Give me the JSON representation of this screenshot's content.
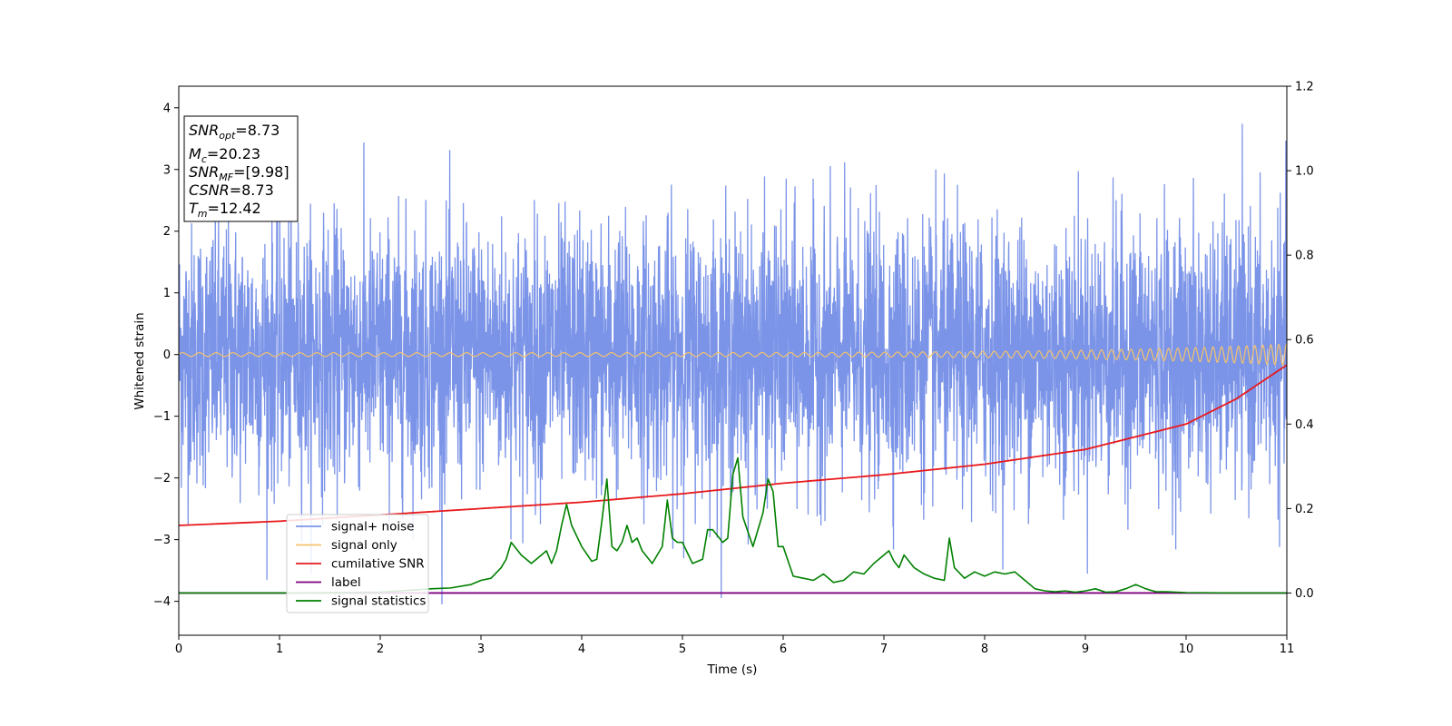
{
  "chart_data": {
    "type": "line",
    "xlabel": "Time (s)",
    "ylabel": "Whitened strain",
    "xlim": [
      0,
      11
    ],
    "ylim_left": [
      -4.55,
      4.35
    ],
    "ylim_right": [
      -0.1,
      1.2
    ],
    "x_ticks": [
      0,
      1,
      2,
      3,
      4,
      5,
      6,
      7,
      8,
      9,
      10,
      11
    ],
    "y_ticks_left": [
      -4,
      -3,
      -2,
      -1,
      0,
      1,
      2,
      3,
      4
    ],
    "y_ticks_right": [
      0.0,
      0.2,
      0.4,
      0.6,
      0.8,
      1.0,
      1.2
    ],
    "grid": false,
    "legend_position": "lower-left",
    "series": [
      {
        "name": "signal+ noise",
        "axis": "left",
        "color": "#7b94e8",
        "noise_std": 1.05,
        "note_values": "dense noise band spanning roughly -4 to 4"
      },
      {
        "name": "signal only",
        "axis": "left",
        "color": "#f5c36b",
        "amplitude_start": 0.03,
        "amplitude_end": 0.17,
        "freq_start_hz": 6,
        "freq_end_hz": 13
      },
      {
        "name": "cumilative SNR",
        "axis": "right",
        "color": "#e8191c",
        "x": [
          0,
          1,
          2,
          3,
          4,
          5,
          6,
          7,
          8,
          9,
          10,
          10.5,
          11
        ],
        "y": [
          0.16,
          0.17,
          0.185,
          0.2,
          0.215,
          0.235,
          0.26,
          0.28,
          0.305,
          0.34,
          0.4,
          0.46,
          0.54
        ]
      },
      {
        "name": "label",
        "axis": "right",
        "color": "#800080",
        "x": [
          0,
          11
        ],
        "y": [
          0.0,
          0.0
        ]
      },
      {
        "name": "signal statistics",
        "axis": "right",
        "color": "#008000",
        "x": [
          0,
          1,
          2,
          2.5,
          2.7,
          2.9,
          3.0,
          3.1,
          3.2,
          3.25,
          3.3,
          3.4,
          3.5,
          3.6,
          3.65,
          3.7,
          3.75,
          3.8,
          3.85,
          3.9,
          4.0,
          4.1,
          4.15,
          4.2,
          4.25,
          4.3,
          4.35,
          4.4,
          4.45,
          4.5,
          4.55,
          4.6,
          4.7,
          4.8,
          4.85,
          4.9,
          4.95,
          5.0,
          5.1,
          5.2,
          5.25,
          5.3,
          5.4,
          5.45,
          5.5,
          5.55,
          5.6,
          5.7,
          5.8,
          5.85,
          5.9,
          5.95,
          6.0,
          6.1,
          6.2,
          6.3,
          6.4,
          6.5,
          6.6,
          6.7,
          6.8,
          6.9,
          7.0,
          7.05,
          7.1,
          7.15,
          7.2,
          7.3,
          7.4,
          7.5,
          7.6,
          7.65,
          7.7,
          7.8,
          7.9,
          8.0,
          8.1,
          8.2,
          8.3,
          8.4,
          8.5,
          8.6,
          8.7,
          8.8,
          8.9,
          9.0,
          9.1,
          9.2,
          9.3,
          9.4,
          9.5,
          9.6,
          9.7,
          9.8,
          9.9,
          10.0,
          10.5,
          11.0
        ],
        "y": [
          0.0,
          0.0,
          0.002,
          0.01,
          0.012,
          0.02,
          0.03,
          0.035,
          0.06,
          0.08,
          0.12,
          0.09,
          0.07,
          0.09,
          0.1,
          0.07,
          0.1,
          0.16,
          0.21,
          0.16,
          0.11,
          0.075,
          0.08,
          0.17,
          0.27,
          0.11,
          0.1,
          0.12,
          0.16,
          0.12,
          0.13,
          0.1,
          0.07,
          0.11,
          0.22,
          0.13,
          0.12,
          0.12,
          0.07,
          0.08,
          0.15,
          0.15,
          0.12,
          0.13,
          0.28,
          0.32,
          0.18,
          0.11,
          0.19,
          0.27,
          0.24,
          0.11,
          0.11,
          0.04,
          0.035,
          0.03,
          0.045,
          0.025,
          0.03,
          0.05,
          0.045,
          0.07,
          0.09,
          0.1,
          0.075,
          0.06,
          0.09,
          0.06,
          0.045,
          0.035,
          0.03,
          0.13,
          0.06,
          0.035,
          0.05,
          0.04,
          0.05,
          0.045,
          0.05,
          0.03,
          0.01,
          0.005,
          0.003,
          0.005,
          0.002,
          0.005,
          0.01,
          0.002,
          0.003,
          0.01,
          0.02,
          0.01,
          0.003,
          0.003,
          0.002,
          0.001,
          0.0,
          0.0
        ]
      }
    ],
    "stats_box": {
      "snr_opt": "=8.73",
      "mc": "=20.23",
      "snr_mf": "=[9.98]",
      "csnr": "=8.73",
      "tm": "=12.42"
    }
  }
}
